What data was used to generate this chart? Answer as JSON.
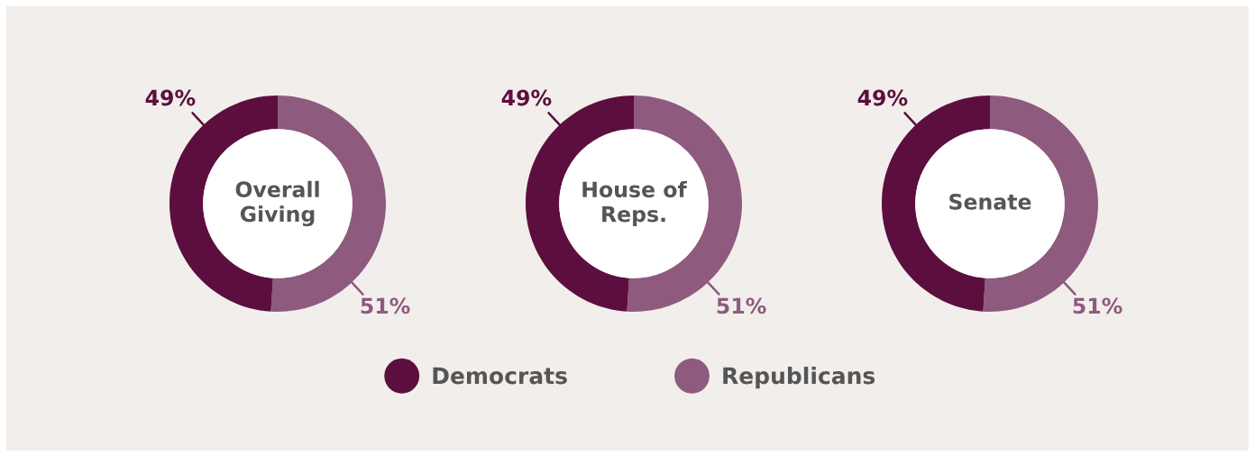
{
  "chart_data": [
    {
      "type": "donut",
      "title": "Overall\nGiving",
      "categories": [
        "Democrats",
        "Republicans"
      ],
      "values": [
        49,
        51
      ],
      "colors": [
        "#5c0f3f",
        "#8e5a7e"
      ],
      "value_labels": [
        "49%",
        "51%"
      ],
      "legend": "bottom"
    },
    {
      "type": "donut",
      "title": "House of\nReps.",
      "categories": [
        null,
        null
      ],
      "values": [
        49,
        51
      ],
      "colors": [
        "#5c0f3f",
        "#8e5a7e"
      ],
      "value_labels": [
        "49%",
        "51%"
      ]
    },
    {
      "type": "donut",
      "title": "Senate",
      "categories": [
        null,
        null
      ],
      "values": [
        49,
        51
      ],
      "colors": [
        "#5c0f3f",
        "#8e5a7e"
      ],
      "value_labels": [
        "49%",
        "51%"
      ]
    }
  ]
}
